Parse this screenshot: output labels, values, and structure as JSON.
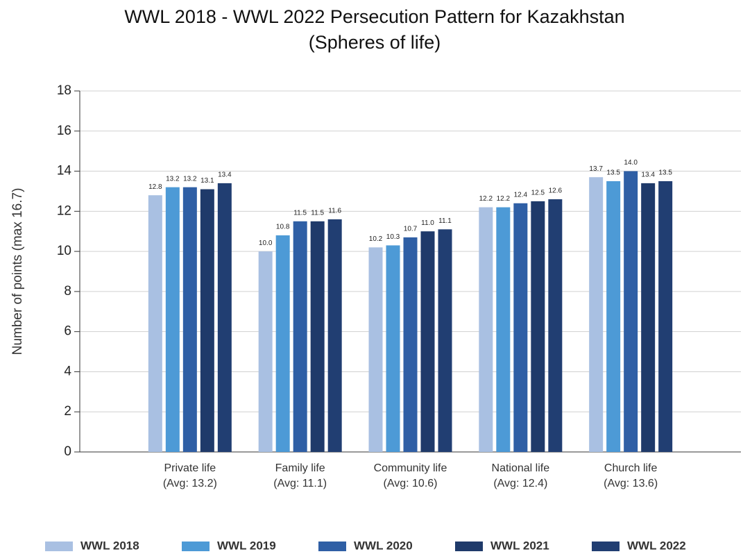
{
  "chart_data": {
    "type": "bar",
    "title": [
      "WWL 2018 - WWL 2022 Persecution Pattern for Kazakhstan",
      "(Spheres of life)"
    ],
    "y_label": "Number of points (max 16.7)",
    "categories": [
      [
        "Private life",
        "(Avg: 13.2)"
      ],
      [
        "Family life",
        "(Avg: 11.1)"
      ],
      [
        "Community life",
        "(Avg: 10.6)"
      ],
      [
        "National life",
        "(Avg: 12.4)"
      ],
      [
        "Church life",
        "(Avg: 13.6)"
      ]
    ],
    "series": [
      {
        "name": "WWL 2018",
        "color": "#a9c0e2",
        "values": [
          12.8,
          10.0,
          10.2,
          12.2,
          13.7
        ]
      },
      {
        "name": "WWL 2019",
        "color": "#4d9ad6",
        "values": [
          13.2,
          10.8,
          10.3,
          12.2,
          13.5
        ]
      },
      {
        "name": "WWL 2020",
        "color": "#2f5fa5",
        "values": [
          13.2,
          11.5,
          10.7,
          12.4,
          14.0
        ]
      },
      {
        "name": "WWL 2021",
        "color": "#1f3a6a",
        "values": [
          13.1,
          11.5,
          11.0,
          12.5,
          13.4
        ]
      },
      {
        "name": "WWL 2022",
        "color": "#213e72",
        "values": [
          13.4,
          11.6,
          11.1,
          12.6,
          13.5
        ]
      }
    ],
    "value_labels": [
      [
        "12.8",
        "10.0",
        "10.2",
        "12.2",
        "13.7"
      ],
      [
        "13.2",
        "10.8",
        "10.3",
        "12.2",
        "13.5"
      ],
      [
        "13.2",
        "11.5",
        "10.7",
        "12.4",
        "14.0"
      ],
      [
        "13.1",
        "11.5",
        "11.0",
        "12.5",
        "13.4"
      ],
      [
        "13.4",
        "11.6",
        "11.1",
        "12.6",
        "13.5"
      ]
    ],
    "ylim": [
      0,
      18
    ],
    "yticks": [
      0,
      2,
      4,
      6,
      8,
      10,
      12,
      14,
      16,
      18
    ],
    "grid": true,
    "legend": "bottom"
  }
}
